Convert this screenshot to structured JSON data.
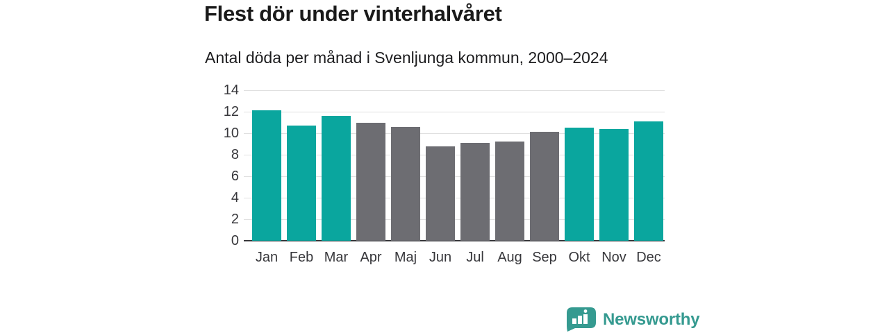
{
  "chart_data": {
    "type": "bar",
    "title": "Flest dör under vinterhalvåret",
    "subtitle": "Antal döda per månad i Svenljunga kommun, 2000–2024",
    "categories": [
      "Jan",
      "Feb",
      "Mar",
      "Apr",
      "Maj",
      "Jun",
      "Jul",
      "Aug",
      "Sep",
      "Okt",
      "Nov",
      "Dec"
    ],
    "values": [
      12.1,
      10.7,
      11.6,
      11.0,
      10.6,
      8.8,
      9.1,
      9.2,
      10.1,
      10.5,
      10.4,
      11.1
    ],
    "highlighted_categories": [
      "Jan",
      "Feb",
      "Mar",
      "Okt",
      "Nov",
      "Dec"
    ],
    "highlight_color": "#0aa69e",
    "base_color": "#6d6d72",
    "xlabel": "",
    "ylabel": "",
    "ylim": [
      0,
      14
    ],
    "yticks": [
      0,
      2,
      4,
      6,
      8,
      10,
      12,
      14
    ],
    "grid": true,
    "legend": false
  },
  "branding": {
    "logo_text": "Newsworthy",
    "logo_color": "#359a90",
    "logo_icon": "speech-bubble-bar-chart-icon"
  },
  "colors": {
    "background": "#ffffff",
    "title_text": "#1a1a1a",
    "tick_text": "#37373b",
    "gridline": "#e0e0e0",
    "axis_line": "#37373b"
  }
}
